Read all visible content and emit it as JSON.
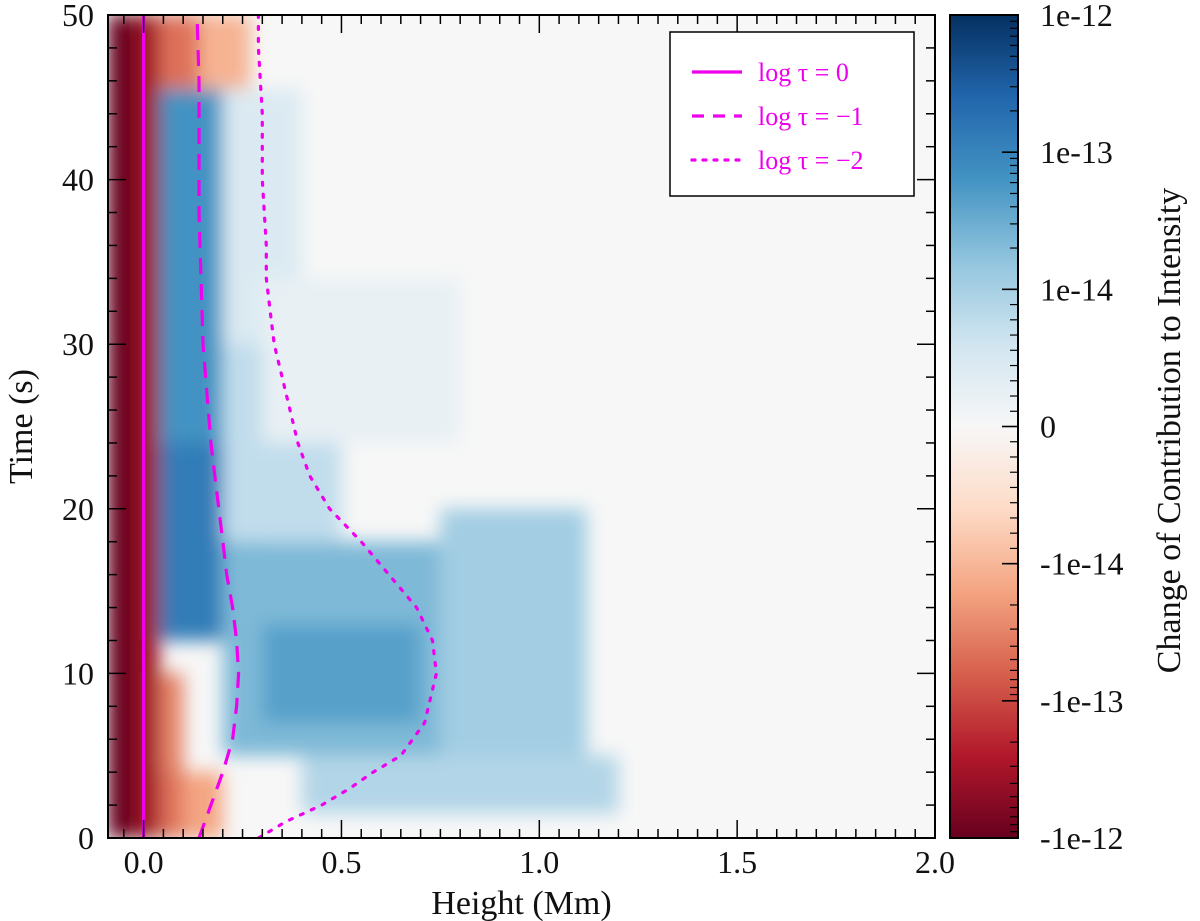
{
  "chart_data": {
    "type": "heatmap",
    "xlabel": "Height (Mm)",
    "ylabel": "Time (s)",
    "xlim": [
      -0.09,
      2.0
    ],
    "ylim": [
      0,
      50
    ],
    "x_ticks": [
      {
        "value": 0.0,
        "label": "0.0"
      },
      {
        "value": 0.5,
        "label": "0.5"
      },
      {
        "value": 1.0,
        "label": "1.0"
      },
      {
        "value": 1.5,
        "label": "1.5"
      },
      {
        "value": 2.0,
        "label": "2.0"
      }
    ],
    "y_ticks": [
      {
        "value": 0,
        "label": "0"
      },
      {
        "value": 10,
        "label": "10"
      },
      {
        "value": 20,
        "label": "20"
      },
      {
        "value": 30,
        "label": "30"
      },
      {
        "value": 40,
        "label": "40"
      },
      {
        "value": 50,
        "label": "50"
      }
    ],
    "colorbar": {
      "label": "Change of Contribution to Intensity",
      "scale": "symlog",
      "colormap": "RdBu",
      "ticks": [
        {
          "value": 1e-12,
          "label": "1e-12"
        },
        {
          "value": 1e-13,
          "label": "1e-13"
        },
        {
          "value": 1e-14,
          "label": "1e-14"
        },
        {
          "value": 0,
          "label": "0"
        },
        {
          "value": -1e-14,
          "label": "-1e-14"
        },
        {
          "value": -1e-13,
          "label": "-1e-13"
        },
        {
          "value": -1e-12,
          "label": "-1e-12"
        }
      ],
      "color_stops": [
        "#67001f",
        "#b2182b",
        "#d6604d",
        "#f4a582",
        "#fddbc7",
        "#f7f7f7",
        "#d1e5f0",
        "#92c5de",
        "#4393c3",
        "#2166ac",
        "#053061"
      ]
    },
    "legend": {
      "placement": "top-right",
      "entries": [
        {
          "label": "log τ = 0",
          "style": "solid"
        },
        {
          "label": "log τ = −1",
          "style": "dashed"
        },
        {
          "label": "log τ = −2",
          "style": "dotted"
        }
      ]
    },
    "line_color": "#ee00ee",
    "series": [
      {
        "style": "solid",
        "points": [
          [
            0.0,
            0
          ],
          [
            0.0,
            10
          ],
          [
            0.0,
            20
          ],
          [
            0.0,
            30
          ],
          [
            0.0,
            40
          ],
          [
            0.0,
            50
          ]
        ]
      },
      {
        "style": "dashed",
        "points": [
          [
            0.14,
            0
          ],
          [
            0.17,
            2
          ],
          [
            0.2,
            4
          ],
          [
            0.225,
            6
          ],
          [
            0.235,
            8
          ],
          [
            0.24,
            10
          ],
          [
            0.235,
            12
          ],
          [
            0.225,
            14
          ],
          [
            0.21,
            16
          ],
          [
            0.2,
            18
          ],
          [
            0.19,
            20
          ],
          [
            0.18,
            22
          ],
          [
            0.17,
            24
          ],
          [
            0.16,
            27
          ],
          [
            0.15,
            30
          ],
          [
            0.145,
            34
          ],
          [
            0.14,
            38
          ],
          [
            0.14,
            42
          ],
          [
            0.14,
            46
          ],
          [
            0.135,
            50
          ]
        ]
      },
      {
        "style": "dotted",
        "points": [
          [
            0.29,
            0
          ],
          [
            0.36,
            1
          ],
          [
            0.45,
            2
          ],
          [
            0.52,
            3
          ],
          [
            0.58,
            4
          ],
          [
            0.65,
            5
          ],
          [
            0.71,
            7
          ],
          [
            0.74,
            10
          ],
          [
            0.73,
            12
          ],
          [
            0.69,
            14
          ],
          [
            0.62,
            16
          ],
          [
            0.55,
            18
          ],
          [
            0.47,
            20
          ],
          [
            0.42,
            22
          ],
          [
            0.39,
            24
          ],
          [
            0.37,
            26
          ],
          [
            0.35,
            28
          ],
          [
            0.33,
            30
          ],
          [
            0.32,
            32
          ],
          [
            0.31,
            34
          ],
          [
            0.31,
            36
          ],
          [
            0.3,
            40
          ],
          [
            0.3,
            44
          ],
          [
            0.29,
            48
          ],
          [
            0.29,
            50
          ]
        ]
      }
    ],
    "regions": [
      {
        "level": -1.0,
        "x_range": [
          -0.09,
          -0.02
        ],
        "y_range": [
          0,
          50
        ]
      },
      {
        "level": -0.85,
        "x_range": [
          -0.02,
          0.04
        ],
        "y_range": [
          0,
          50
        ]
      },
      {
        "level": -0.55,
        "x_range": [
          0.04,
          0.1
        ],
        "y_range": [
          0,
          4
        ]
      },
      {
        "level": -0.5,
        "x_range": [
          0.04,
          0.1
        ],
        "y_range": [
          4,
          10
        ]
      },
      {
        "level": -0.4,
        "x_range": [
          0.1,
          0.2
        ],
        "y_range": [
          0,
          4
        ]
      },
      {
        "level": -0.55,
        "x_range": [
          0.04,
          0.14
        ],
        "y_range": [
          45.5,
          50
        ]
      },
      {
        "level": -0.35,
        "x_range": [
          0.14,
          0.27
        ],
        "y_range": [
          45.5,
          50
        ]
      },
      {
        "level": 0.7,
        "x_range": [
          0.04,
          0.3
        ],
        "y_range": [
          12,
          24
        ]
      },
      {
        "level": 0.6,
        "x_range": [
          0.04,
          0.2
        ],
        "y_range": [
          24,
          45.5
        ]
      },
      {
        "level": 0.45,
        "x_range": [
          0.2,
          0.75
        ],
        "y_range": [
          5,
          18
        ]
      },
      {
        "level": 0.55,
        "x_range": [
          0.3,
          0.7
        ],
        "y_range": [
          7,
          13
        ]
      },
      {
        "level": 0.35,
        "x_range": [
          0.75,
          1.12
        ],
        "y_range": [
          3,
          20
        ]
      },
      {
        "level": 0.3,
        "x_range": [
          0.4,
          1.2
        ],
        "y_range": [
          1.5,
          5
        ]
      },
      {
        "level": 0.25,
        "x_range": [
          0.2,
          0.5
        ],
        "y_range": [
          18,
          30
        ]
      },
      {
        "level": 0.15,
        "x_range": [
          0.2,
          0.4
        ],
        "y_range": [
          30,
          45.5
        ]
      },
      {
        "level": 0.08,
        "x_range": [
          0.3,
          0.8
        ],
        "y_range": [
          24,
          34
        ]
      }
    ]
  }
}
